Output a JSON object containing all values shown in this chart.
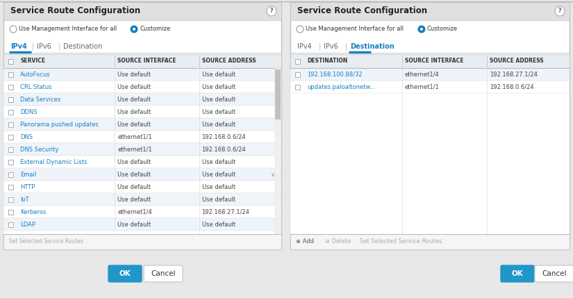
{
  "bg_color": "#e8e8e8",
  "panel_bg": "#ffffff",
  "header_bg": "#e0e0e0",
  "title_text": "Service Route Configuration",
  "radio_options": [
    "Use Management Interface for all",
    "Customize"
  ],
  "tabs_left": [
    "IPv4",
    "IPv6",
    "Destination"
  ],
  "tabs_right": [
    "IPv4",
    "IPv6",
    "Destination"
  ],
  "active_tab_left": "IPv4",
  "active_tab_right": "Destination",
  "left_columns": [
    "SERVICE",
    "SOURCE INTERFACE",
    "SOURCE ADDRESS"
  ],
  "right_columns": [
    "DESTINATION",
    "SOURCE INTERFACE",
    "SOURCE ADDRESS"
  ],
  "left_rows": [
    [
      "AutoFocus",
      "Use default",
      "Use default"
    ],
    [
      "CRL Status",
      "Use default",
      "Use default"
    ],
    [
      "Data Services",
      "Use default",
      "Use default"
    ],
    [
      "DDNS",
      "Use default",
      "Use default"
    ],
    [
      "Panorama pushed updates",
      "Use default",
      "Use default"
    ],
    [
      "DNS",
      "ethernet1/1",
      "192.168.0.6/24"
    ],
    [
      "DNS Security",
      "ethernet1/1",
      "192.168.0.6/24"
    ],
    [
      "External Dynamic Lists",
      "Use default",
      "Use default"
    ],
    [
      "Email",
      "Use default",
      "Use default"
    ],
    [
      "HTTP",
      "Use default",
      "Use default"
    ],
    [
      "IoT",
      "Use default",
      "Use default"
    ],
    [
      "Kerberos",
      "ethernet1/4",
      "192.168.27.1/24"
    ],
    [
      "LDAP",
      "Use default",
      "Use default"
    ]
  ],
  "right_rows": [
    [
      "192.168.100.88/32",
      "ethernet1/4",
      "192.168.27.1/24"
    ],
    [
      "updates.paloaltonetw...",
      "ethernet1/1",
      "192.168.0.6/24"
    ]
  ],
  "link_color": "#1a7fc1",
  "col_header_bg": "#e8edf2",
  "col_header_text": "#333333",
  "row_text_color": "#444444",
  "alt_row_color": "#eef4fa",
  "normal_row_color": "#ffffff",
  "border_color": "#c0c0c0",
  "tab_active_color": "#1a7fc1",
  "tab_inactive_color": "#666666",
  "btn_ok_color": "#2196c8",
  "scrollbar_track": "#f0f0f0",
  "scrollbar_thumb": "#c0c0c0",
  "bottom_bar_bg": "#f5f5f5",
  "left_bottom_text": "Set Selected Service Routes",
  "email_row_index": 8,
  "ldap_row_index": 12
}
